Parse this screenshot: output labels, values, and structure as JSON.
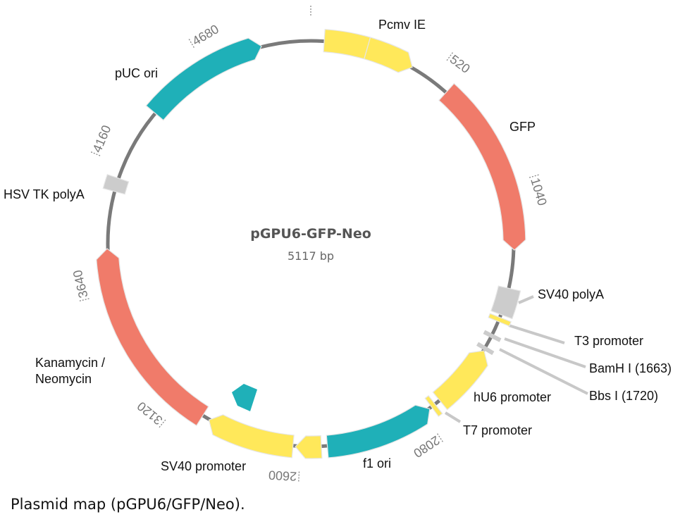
{
  "plasmid": {
    "name": "pGPU6-GFP-Neo",
    "size_label": "5117 bp",
    "length_bp": 5117
  },
  "colors": {
    "backbone": "#7a7a7a",
    "promoter": "#ffe85a",
    "origin": "#1fb0b8",
    "gene": "#f07b6a",
    "terminator": "#cccccc",
    "site": "#cccccc",
    "leader": "#c8c8c8",
    "tick": "#888888"
  },
  "features": [
    {
      "label": "Pcmv IE",
      "kind": "promoter",
      "segments": [
        [
          54,
          229
        ],
        [
          229,
          425
        ]
      ],
      "direction": "cw"
    },
    {
      "label": "GFP",
      "kind": "gene",
      "segments": [
        [
          594,
          1305
        ]
      ],
      "direction": "cw"
    },
    {
      "label": "SV40 polyA",
      "kind": "terminator",
      "segments": [
        [
          1460,
          1570
        ]
      ],
      "direction": "none"
    },
    {
      "label": "T3 promoter",
      "kind": "promoter",
      "segments": [
        [
          1582,
          1600
        ]
      ],
      "direction": "none"
    },
    {
      "label": "hU6 promoter",
      "kind": "promoter",
      "segments": [
        [
          1730,
          1998
        ]
      ],
      "direction": "ccw"
    },
    {
      "label": "T7 promoter",
      "kind": "promoter",
      "segments": [
        [
          2022,
          2040
        ]
      ],
      "direction": "none"
    },
    {
      "label": "f1 ori",
      "kind": "origin",
      "segments": [
        [
          2050,
          2492
        ]
      ],
      "direction": "ccw"
    },
    {
      "label": "",
      "kind": "promoter",
      "segments": [
        [
          2516,
          2620
        ]
      ],
      "direction": "cw"
    },
    {
      "label": "SV40 promoter",
      "kind": "promoter",
      "segments": [
        [
          2630,
          2985
        ]
      ],
      "direction": "cw"
    },
    {
      "label": "Kanamycin /",
      "label2": "Neomycin",
      "kind": "gene",
      "segments": [
        [
          3015,
          3818
        ]
      ],
      "direction": "cw"
    },
    {
      "label": "HSV TK polyA",
      "kind": "terminator",
      "segments": [
        [
          4050,
          4105
        ]
      ],
      "direction": "none"
    },
    {
      "label": "pUC ori",
      "kind": "origin",
      "segments": [
        [
          4406,
          4918
        ]
      ],
      "direction": "cw"
    }
  ],
  "sites": [
    {
      "label": "BamH I (1663)",
      "position": 1663
    },
    {
      "label": "Bbs I (1720)",
      "position": 1720
    }
  ],
  "ticks": [
    {
      "bp": 0,
      "label": ""
    },
    {
      "bp": 520,
      "label": "520"
    },
    {
      "bp": 1040,
      "label": "1040"
    },
    {
      "bp": 2080,
      "label": "2080"
    },
    {
      "bp": 2600,
      "label": "2600"
    },
    {
      "bp": 3120,
      "label": "3120"
    },
    {
      "bp": 3640,
      "label": "3640"
    },
    {
      "bp": 4160,
      "label": "4160"
    },
    {
      "bp": 4680,
      "label": "4680"
    }
  ],
  "caption": "Plasmid map (pGPU6/GFP/Neo)."
}
